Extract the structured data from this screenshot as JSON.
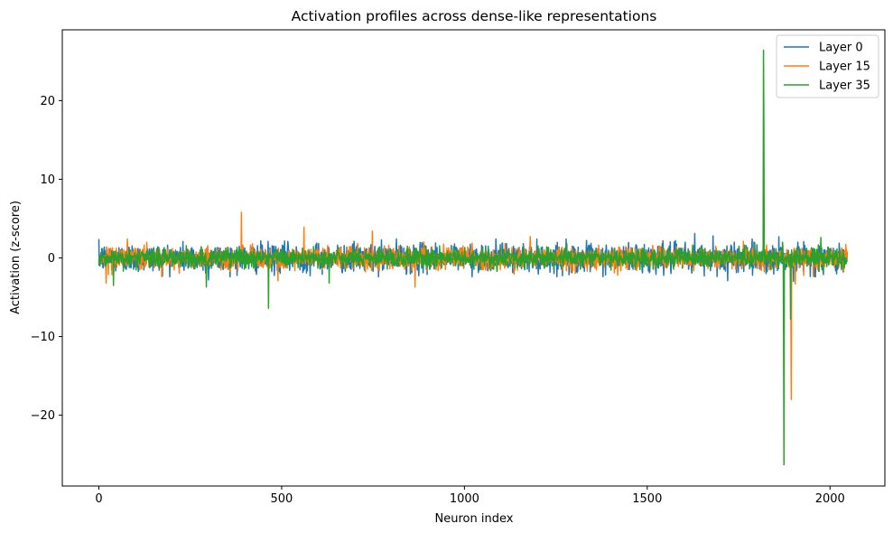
{
  "chart_data": {
    "type": "line",
    "title": "Activation profiles across dense-like representations",
    "xlabel": "Neuron index",
    "ylabel": "Activation (z-score)",
    "xlim": [
      -100,
      2150
    ],
    "ylim": [
      -29,
      29
    ],
    "xticks": [
      0,
      500,
      1000,
      1500,
      2000
    ],
    "yticks": [
      -20,
      -10,
      0,
      10,
      20
    ],
    "n_points": 2048,
    "legend_position": "upper-right",
    "grid": false,
    "series": [
      {
        "name": "Layer 0",
        "color": "#1f77b4",
        "noise_std": 0.9,
        "spikes": [
          [
            1630,
            3.1
          ],
          [
            1680,
            2.8
          ],
          [
            1860,
            2.7
          ],
          [
            1900,
            -3.0
          ],
          [
            300,
            -2.8
          ],
          [
            1720,
            -2.9
          ]
        ]
      },
      {
        "name": "Layer 15",
        "color": "#ff7f0e",
        "noise_std": 0.7,
        "spikes": [
          [
            390,
            5.8
          ],
          [
            561,
            3.9
          ],
          [
            748,
            3.4
          ],
          [
            865,
            -3.7
          ],
          [
            1180,
            2.7
          ],
          [
            20,
            -3.2
          ],
          [
            490,
            -2.9
          ],
          [
            1893,
            -8.0
          ],
          [
            1894,
            -18.0
          ],
          [
            1905,
            -3.3
          ]
        ]
      },
      {
        "name": "Layer 35",
        "color": "#2ca02c",
        "noise_std": 0.6,
        "spikes": [
          [
            1818,
            26.4
          ],
          [
            1819,
            17.2
          ],
          [
            1874,
            -26.3
          ],
          [
            1873,
            -10.0
          ],
          [
            1892,
            -7.8
          ],
          [
            464,
            -6.4
          ],
          [
            294,
            -3.7
          ],
          [
            40,
            -3.5
          ],
          [
            630,
            -3.2
          ],
          [
            1975,
            2.6
          ],
          [
            1870,
            2.0
          ]
        ]
      }
    ]
  }
}
